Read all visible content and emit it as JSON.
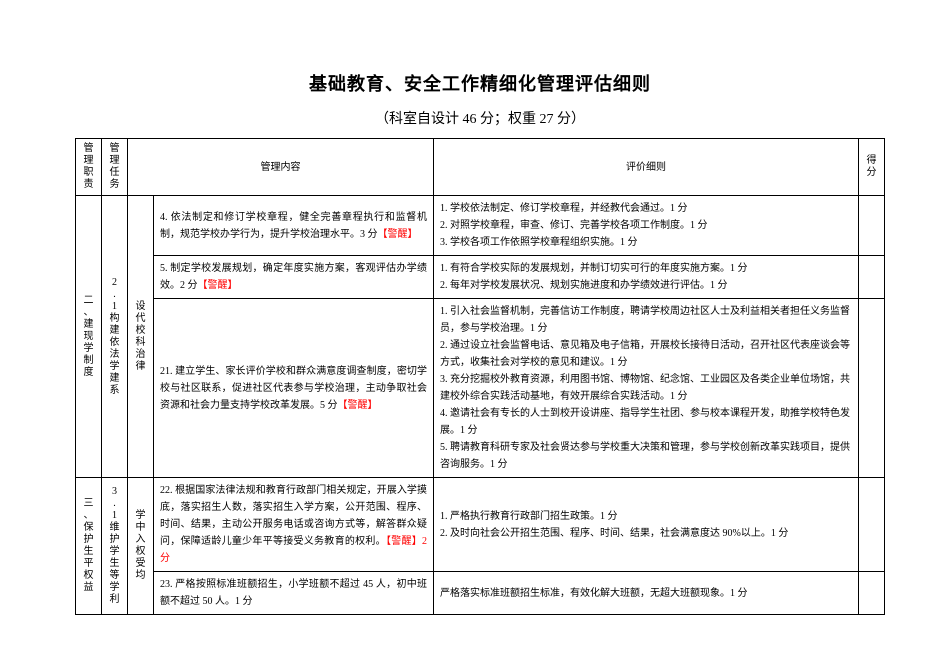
{
  "title": "基础教育、安全工作精细化管理评估细则",
  "subtitle": "（科室自设计 46 分；权重 27 分）",
  "headers": {
    "col1": "管理职责",
    "col2": "管理任务",
    "col3_group": "管理内容",
    "col5": "评价细则",
    "col6": "得分"
  },
  "groupA": {
    "col1": "二、建现学制度",
    "col2": "2.1 构建依法学建系",
    "col3": "设代校科治律",
    "rows": [
      {
        "content_prefix": "4. 依法制定和修订学校章程，健全完善章程执行和监督机制，规范学校办学行为，提升学校治理水平。3 分",
        "content_red": "【警醒】",
        "eval": "1. 学校依法制定、修订学校章程，并经教代会通过。1 分\n2. 对照学校章程，审查、修订、完善学校各项工作制度。1 分\n3. 学校各项工作依照学校章程组织实施。1 分"
      },
      {
        "content_prefix": "5. 制定学校发展规划，确定年度实施方案，客观评估办学绩效。2 分",
        "content_red": "【警醒】",
        "eval": "1. 有符合学校实际的发展规划，并制订切实可行的年度实施方案。1 分\n2. 每年对学校发展状况、规划实施进度和办学绩效进行评估。1 分"
      },
      {
        "content_prefix": "21. 建立学生、家长评价学校和群众满意度调查制度，密切学校与社区联系，促进社区代表参与学校治理，主动争取社会资源和社会力量支持学校改革发展。5 分",
        "content_red": "【警醒】",
        "eval": "1. 引入社会监督机制，完善信访工作制度，聘请学校周边社区人士及利益相关者担任义务监督员，参与学校治理。1 分\n2. 通过设立社会监督电话、意见箱及电子信箱，开展校长接待日活动，召开社区代表座谈会等方式，收集社会对学校的意见和建议。1 分\n3. 充分挖掘校外教育资源，利用图书馆、博物馆、纪念馆、工业园区及各类企业单位场馆，共建校外综合实践活动基地，有效开展综合实践活动。1 分\n4. 邀请社会有专长的人士到校开设讲座、指导学生社团、参与校本课程开发，助推学校特色发展。1 分\n5. 聘请教育科研专家及社会贤达参与学校重大决策和管理，参与学校创新改革实践项目，提供咨询服务。1 分"
      }
    ]
  },
  "groupB": {
    "col1": "三、保护生平权益",
    "col2": "3.1 维护学生等学利",
    "col3": "学中入权受均",
    "rows": [
      {
        "content_prefix": "22. 根据国家法律法规和教育行政部门相关规定，开展入学摸底，落实招生人数，落实招生入学方案，公开范围、程序、时间、结果，主动公开服务电话或咨询方式等，解答群众疑问，保障适龄儿童少年平等接受义务教育的权利。",
        "content_red": "【警醒】2 分",
        "eval": "1. 严格执行教育行政部门招生政策。1 分\n2. 及时向社会公开招生范围、程序、时间、结果，社会满意度达 90%以上。1 分"
      },
      {
        "content_prefix": "23. 严格按照标准班额招生，小学班额不超过 45 人，初中班额不超过 50 人。1 分",
        "content_red": "",
        "eval": "严格落实标准班额招生标准，有效化解大班额，无超大班额现象。1 分"
      }
    ]
  }
}
